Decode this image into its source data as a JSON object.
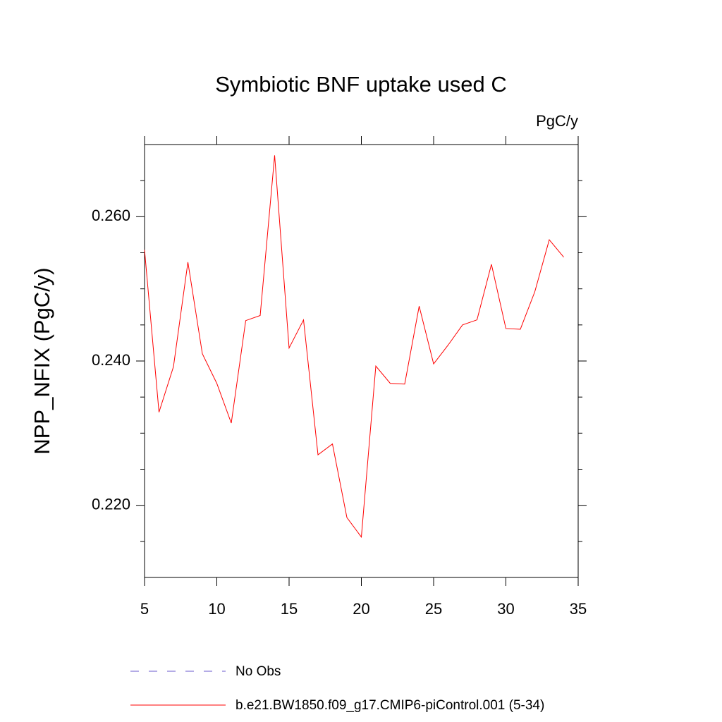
{
  "chart_data": {
    "type": "line",
    "title": "Symbiotic BNF uptake used C",
    "units": "PgC/y",
    "y_label": "NPP_NFIX  (PgC/y)",
    "x": [
      5,
      6,
      7,
      8,
      9,
      10,
      11,
      12,
      13,
      14,
      15,
      16,
      17,
      18,
      19,
      20,
      21,
      22,
      23,
      24,
      25,
      26,
      27,
      28,
      29,
      30,
      31,
      32,
      33,
      34
    ],
    "series": [
      {
        "name": "b.e21.BW1850.f09_g17.CMIP6-piControl.001 (5-34)",
        "color": "#ff0000",
        "values": [
          0.2554,
          0.2329,
          0.2392,
          0.2537,
          0.241,
          0.2369,
          0.2314,
          0.2456,
          0.2463,
          0.2685,
          0.2418,
          0.2457,
          0.227,
          0.2285,
          0.2183,
          0.2156,
          0.2393,
          0.2369,
          0.2368,
          0.2476,
          0.2396,
          0.2422,
          0.245,
          0.2457,
          0.2534,
          0.2445,
          0.2444,
          0.2496,
          0.2568,
          0.2544
        ]
      }
    ],
    "reference": {
      "name": "No Obs",
      "color": "#6a5acd",
      "dash": "12,14"
    },
    "xlim": [
      5,
      35
    ],
    "xticks": [
      5,
      10,
      15,
      20,
      25,
      30,
      35
    ],
    "ylim": [
      0.21,
      0.27
    ],
    "yticks": [
      {
        "value": 0.22,
        "label": "0.220"
      },
      {
        "value": 0.24,
        "label": "0.240"
      },
      {
        "value": 0.26,
        "label": "0.260"
      }
    ],
    "yminorticks": [
      0.215,
      0.225,
      0.23,
      0.235,
      0.245,
      0.25,
      0.255,
      0.265
    ]
  }
}
